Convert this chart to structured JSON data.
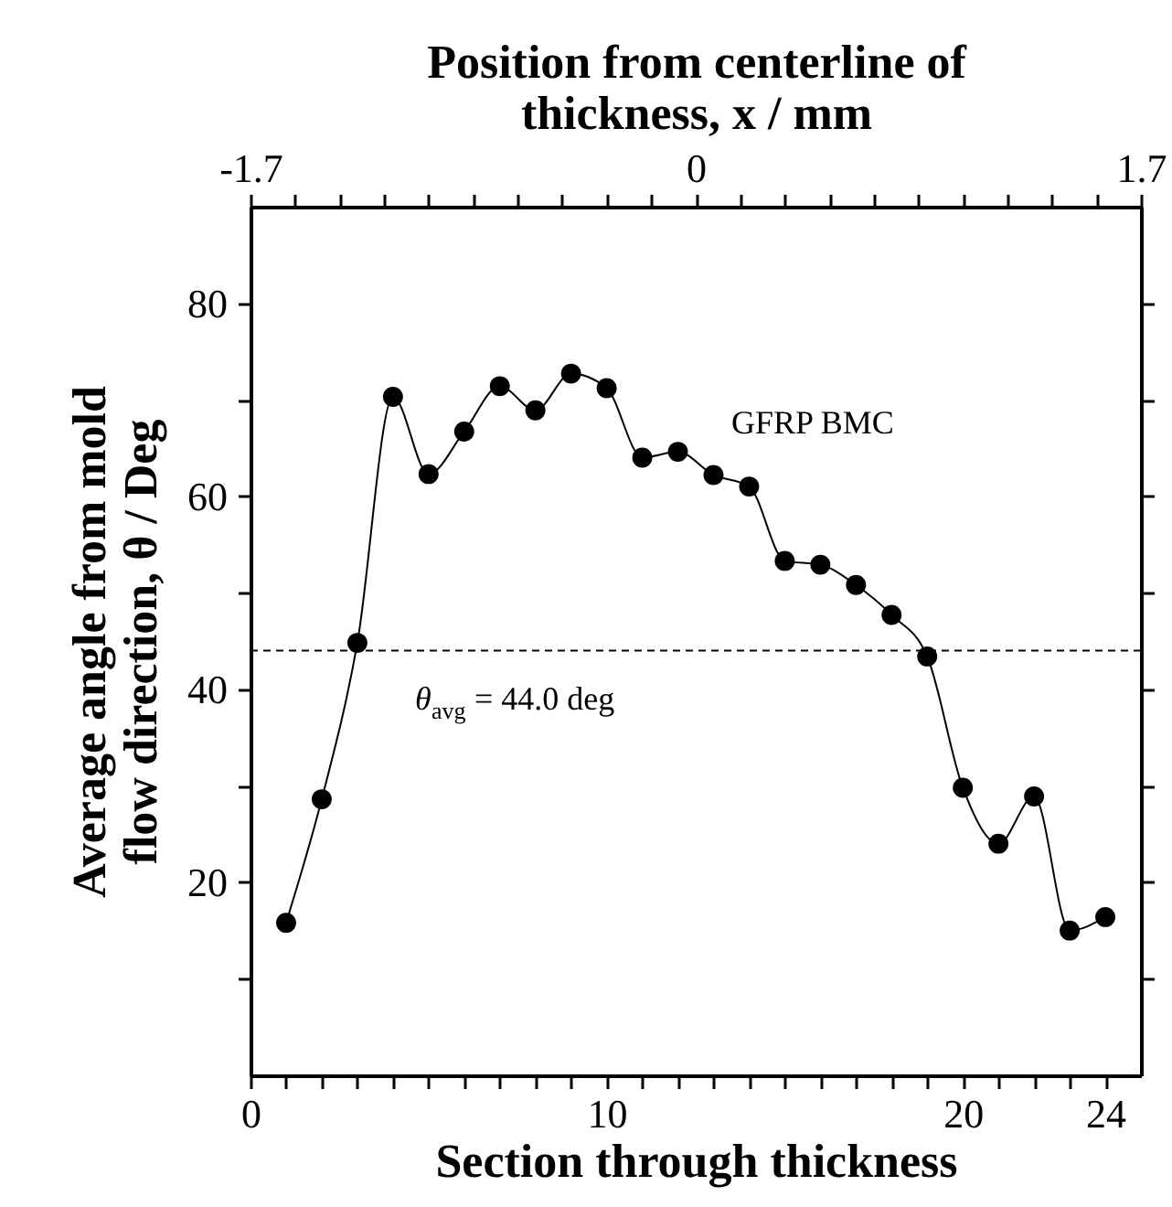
{
  "chart_data": {
    "type": "line",
    "xlabel": "Section through thickness",
    "ylabel": "Average angle from mold flow direction,  θ / Deg",
    "x2label": "Position from centerline of thickness,  x  /  mm",
    "xlim": [
      0,
      25
    ],
    "ylim": [
      0,
      90
    ],
    "x2lim": [
      -1.7,
      1.7
    ],
    "xticks": [
      0,
      {
        "value": 1,
        "label": null
      },
      {
        "value": 2,
        "label": null
      },
      {
        "value": 3,
        "label": null
      },
      {
        "value": 4,
        "label": null
      },
      {
        "value": 5,
        "label": null
      },
      {
        "value": 6,
        "label": null
      },
      {
        "value": 7,
        "label": null
      },
      {
        "value": 8,
        "label": null
      },
      {
        "value": 9,
        "label": null
      },
      10,
      {
        "value": 11,
        "label": null
      },
      {
        "value": 12,
        "label": null
      },
      {
        "value": 13,
        "label": null
      },
      {
        "value": 14,
        "label": null
      },
      {
        "value": 15,
        "label": null
      },
      {
        "value": 16,
        "label": null
      },
      {
        "value": 17,
        "label": null
      },
      {
        "value": 18,
        "label": null
      },
      {
        "value": 19,
        "label": null
      },
      20,
      {
        "value": 21,
        "label": null
      },
      {
        "value": 22,
        "label": null
      },
      {
        "value": 23,
        "label": null
      },
      24
    ],
    "x2ticks": [
      -1.7,
      {
        "value": -1.53,
        "label": null
      },
      {
        "value": -1.36,
        "label": null
      },
      {
        "value": -1.19,
        "label": null
      },
      {
        "value": -1.02,
        "label": null
      },
      {
        "value": -0.85,
        "label": null
      },
      {
        "value": -0.68,
        "label": null
      },
      {
        "value": -0.51,
        "label": null
      },
      {
        "value": -0.34,
        "label": null
      },
      {
        "value": -0.17,
        "label": null
      },
      0,
      {
        "value": 0.17,
        "label": null
      },
      {
        "value": 0.34,
        "label": null
      },
      {
        "value": 0.51,
        "label": null
      },
      {
        "value": 0.68,
        "label": null
      },
      {
        "value": 0.85,
        "label": null
      },
      {
        "value": 1.02,
        "label": null
      },
      {
        "value": 1.19,
        "label": null
      },
      {
        "value": 1.36,
        "label": null
      },
      {
        "value": 1.53,
        "label": null
      },
      1.7
    ],
    "yticks": [
      {
        "value": 10,
        "label": null
      },
      20,
      {
        "value": 30,
        "label": null
      },
      40,
      {
        "value": 50,
        "label": null
      },
      60,
      {
        "value": 70,
        "label": null
      },
      80
    ],
    "x": [
      1,
      2,
      3,
      4,
      5,
      6,
      7,
      8,
      9,
      10,
      11,
      12,
      13,
      14,
      15,
      16,
      17,
      18,
      19,
      20,
      21,
      22,
      23,
      24
    ],
    "series": [
      {
        "name": "GFRP BMC",
        "color": "#000000",
        "values": [
          15.8,
          28.6,
          44.8,
          70.3,
          62.3,
          66.7,
          71.4,
          68.9,
          72.7,
          71.2,
          64.0,
          64.6,
          62.2,
          61.0,
          53.3,
          52.9,
          50.8,
          47.7,
          43.4,
          29.8,
          24.0,
          28.9,
          15.0,
          16.4
        ]
      }
    ],
    "ref_lines": [
      {
        "axis": "y",
        "value": 44.0,
        "label": "θ$_{avg}$ = 44.0 deg",
        "color": "#000000",
        "line_style": "dashed"
      }
    ],
    "marker": "circle",
    "line_style": "solid",
    "grid": false
  }
}
